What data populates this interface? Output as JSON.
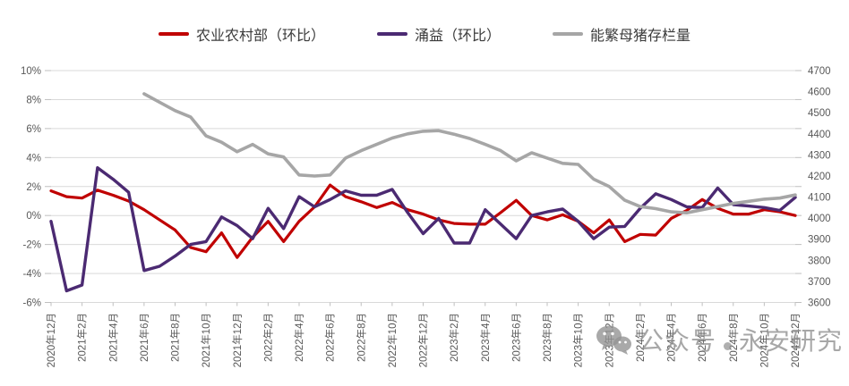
{
  "legend": {
    "items": [
      {
        "label": "农业农村部（环比）",
        "color": "#C00000"
      },
      {
        "label": "涌益（环比）",
        "color": "#4B2A72"
      },
      {
        "label": "能繁母猪存栏量",
        "color": "#A6A6A6"
      }
    ]
  },
  "axes": {
    "left": {
      "labels": [
        "10%",
        "8%",
        "6%",
        "4%",
        "2%",
        "0%",
        "-2%",
        "-4%",
        "-6%"
      ]
    },
    "right": {
      "labels": [
        "4700",
        "4600",
        "4500",
        "4400",
        "4300",
        "4200",
        "4100",
        "4000",
        "3900",
        "3800",
        "3700",
        "3600"
      ]
    },
    "x": {
      "labels": [
        "2020年12月",
        "2021年2月",
        "2021年4月",
        "2021年6月",
        "2021年8月",
        "2021年10月",
        "2021年12月",
        "2022年2月",
        "2022年4月",
        "2022年6月",
        "2022年8月",
        "2022年10月",
        "2022年12月",
        "2023年2月",
        "2023年4月",
        "2023年6月",
        "2023年8月",
        "2023年10月",
        "2023年12月",
        "2024年2月",
        "2024年4月",
        "2024年6月",
        "2024年8月",
        "2024年10月",
        "2024年12月"
      ]
    }
  },
  "watermark": {
    "prefix": "公众号",
    "suffix": "永安研究"
  },
  "chart_data": {
    "type": "line",
    "title": "",
    "x": [
      "2020-12",
      "2021-01",
      "2021-02",
      "2021-03",
      "2021-04",
      "2021-05",
      "2021-06",
      "2021-07",
      "2021-08",
      "2021-09",
      "2021-10",
      "2021-11",
      "2021-12",
      "2022-01",
      "2022-02",
      "2022-03",
      "2022-04",
      "2022-05",
      "2022-06",
      "2022-07",
      "2022-08",
      "2022-09",
      "2022-10",
      "2022-11",
      "2022-12",
      "2023-01",
      "2023-02",
      "2023-03",
      "2023-04",
      "2023-05",
      "2023-06",
      "2023-07",
      "2023-08",
      "2023-09",
      "2023-10",
      "2023-11",
      "2023-12",
      "2024-01",
      "2024-02",
      "2024-03",
      "2024-04",
      "2024-05",
      "2024-06",
      "2024-07",
      "2024-08",
      "2024-09",
      "2024-10",
      "2024-11",
      "2024-12"
    ],
    "x_tick_every": 2,
    "grid": "horizontal",
    "legend_position": "top",
    "left_axis": {
      "min": -6,
      "max": 10,
      "step": 2,
      "unit": "%"
    },
    "right_axis": {
      "min": 3600,
      "max": 4700,
      "step": 100
    },
    "series": [
      {
        "name": "农业农村部（环比）",
        "axis": "left",
        "color": "#C00000",
        "width": 3.2,
        "values": [
          1.7,
          1.3,
          1.2,
          1.75,
          1.4,
          1.0,
          0.4,
          -0.3,
          -1.0,
          -2.2,
          -2.5,
          -1.2,
          -2.9,
          -1.5,
          -0.4,
          -1.8,
          -0.4,
          0.6,
          2.1,
          1.3,
          0.95,
          0.55,
          0.9,
          0.4,
          0.1,
          -0.3,
          -0.55,
          -0.6,
          -0.6,
          0.2,
          1.05,
          0.0,
          -0.3,
          0.05,
          -0.4,
          -1.2,
          -0.3,
          -1.8,
          -1.3,
          -1.35,
          -0.2,
          0.35,
          1.1,
          0.5,
          0.1,
          0.1,
          0.4,
          0.25,
          0.0
        ]
      },
      {
        "name": "涌益（环比）",
        "axis": "left",
        "color": "#4B2A72",
        "width": 3.4,
        "values": [
          -0.4,
          -5.2,
          -4.8,
          3.3,
          2.5,
          1.6,
          -3.8,
          -3.5,
          -2.8,
          -2.0,
          -1.8,
          -0.1,
          -0.7,
          -1.6,
          0.5,
          -0.9,
          1.3,
          0.6,
          1.1,
          1.7,
          1.4,
          1.4,
          1.8,
          0.2,
          -1.25,
          -0.2,
          -1.9,
          -1.9,
          0.4,
          -0.6,
          -1.6,
          0.0,
          0.25,
          0.45,
          -0.4,
          -1.6,
          -0.8,
          -0.75,
          0.5,
          1.5,
          1.1,
          0.6,
          0.55,
          1.9,
          0.75,
          0.65,
          0.55,
          0.35,
          1.25
        ]
      },
      {
        "name": "能繁母猪存栏量",
        "axis": "right",
        "color": "#A6A6A6",
        "width": 3.6,
        "values": [
          null,
          null,
          null,
          null,
          null,
          null,
          4590,
          4550,
          4510,
          4480,
          4390,
          4360,
          4315,
          4350,
          4305,
          4290,
          4205,
          4200,
          4205,
          4285,
          4320,
          4350,
          4380,
          4400,
          4412,
          4415,
          4398,
          4378,
          4350,
          4320,
          4272,
          4310,
          4285,
          4260,
          4255,
          4185,
          4150,
          4085,
          4055,
          4045,
          4030,
          4025,
          4040,
          4055,
          4070,
          4080,
          4090,
          4095,
          4110
        ]
      }
    ]
  }
}
